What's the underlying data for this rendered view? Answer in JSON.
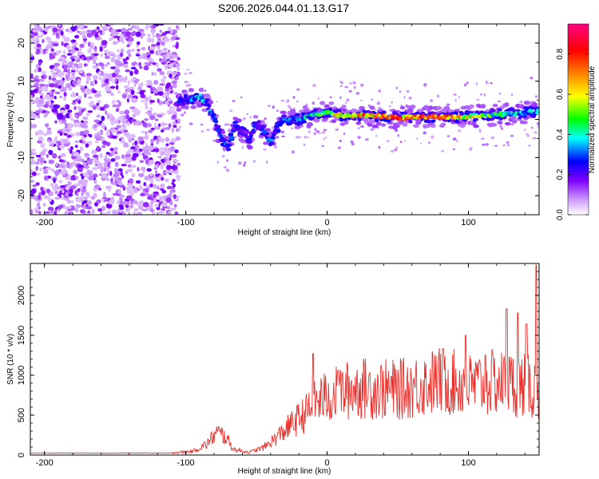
{
  "title": "S206.2026.044.01.13.G17",
  "chart_data": [
    {
      "type": "heatmap",
      "name": "spectrogram",
      "xlabel": "Height of straight line (km)",
      "ylabel": "Frequency (Hz)",
      "xlim": [
        -210,
        150
      ],
      "ylim": [
        -25,
        25
      ],
      "xticks": [
        -200,
        -100,
        0,
        100
      ],
      "yticks": [
        -20,
        -10,
        0,
        10,
        20
      ],
      "colorbar": {
        "label": "Normalized spectral amplitude",
        "range": [
          0,
          0.95
        ],
        "ticks": [
          0.0,
          0.2,
          0.4,
          0.6,
          0.8
        ],
        "tick_labels": [
          "0.0",
          "0.2",
          "0.4",
          "0.6",
          "0.8"
        ],
        "colors": [
          "#ffffff",
          "#cc99ff",
          "#7f00ff",
          "#0000ff",
          "#00ffff",
          "#00ff00",
          "#ffff00",
          "#ff8000",
          "#ff0000",
          "#ff0080"
        ]
      },
      "ridge": [
        [
          -100,
          5
        ],
        [
          -90,
          6
        ],
        [
          -85,
          4
        ],
        [
          -80,
          0
        ],
        [
          -75,
          -5
        ],
        [
          -70,
          -7
        ],
        [
          -65,
          -2
        ],
        [
          -60,
          -3
        ],
        [
          -55,
          -5
        ],
        [
          -50,
          -1
        ],
        [
          -45,
          -3
        ],
        [
          -40,
          -6
        ],
        [
          -35,
          -2
        ],
        [
          -30,
          0
        ],
        [
          -20,
          0
        ],
        [
          -10,
          1
        ],
        [
          0,
          2
        ],
        [
          10,
          1
        ],
        [
          30,
          1
        ],
        [
          50,
          0.5
        ],
        [
          70,
          0.7
        ],
        [
          90,
          0.6
        ],
        [
          110,
          1
        ],
        [
          130,
          1.5
        ],
        [
          150,
          2
        ]
      ],
      "ridge_amplitude": [
        0.3,
        0.45,
        0.4,
        0.3,
        0.3,
        0.35,
        0.3,
        0.25,
        0.3,
        0.3,
        0.3,
        0.35,
        0.35,
        0.35,
        0.4,
        0.5,
        0.6,
        0.75,
        0.85,
        0.9,
        0.9,
        0.85,
        0.6,
        0.45,
        0.4
      ]
    },
    {
      "type": "line",
      "name": "snr",
      "xlabel": "Height of straight line (km)",
      "ylabel": "SNR (10 * v/v)",
      "xlim": [
        -210,
        150
      ],
      "ylim": [
        0,
        2400
      ],
      "xticks": [
        -200,
        -100,
        0,
        100
      ],
      "yticks": [
        0,
        500,
        1000,
        1500,
        2000
      ],
      "color": "#e8302b",
      "series_shape": [
        [
          -210,
          25
        ],
        [
          -110,
          25
        ],
        [
          -95,
          40
        ],
        [
          -85,
          120
        ],
        [
          -78,
          240
        ],
        [
          -72,
          200
        ],
        [
          -66,
          60
        ],
        [
          -55,
          30
        ],
        [
          -45,
          80
        ],
        [
          -35,
          200
        ],
        [
          -25,
          330
        ],
        [
          -15,
          450
        ],
        [
          -5,
          600
        ],
        [
          0,
          620
        ],
        [
          20,
          720
        ],
        [
          50,
          700
        ],
        [
          80,
          800
        ],
        [
          100,
          750
        ],
        [
          120,
          780
        ],
        [
          140,
          750
        ],
        [
          150,
          700
        ]
      ],
      "peaks": [
        [
          -10,
          1270
        ],
        [
          8,
          1060
        ],
        [
          82,
          1330
        ],
        [
          98,
          1500
        ],
        [
          112,
          1250
        ],
        [
          127,
          1830
        ],
        [
          135,
          1780
        ],
        [
          141,
          1640
        ],
        [
          148,
          2380
        ]
      ]
    }
  ]
}
